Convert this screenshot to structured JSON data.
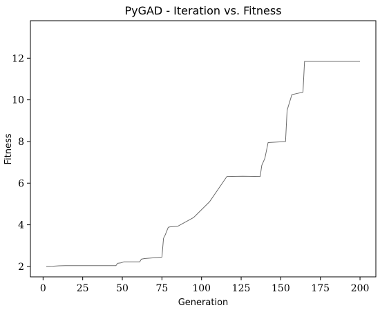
{
  "chart_data": {
    "type": "line",
    "title": "PyGAD - Iteration vs. Fitness",
    "xlabel": "Generation",
    "ylabel": "Fitness",
    "xlim": [
      -8,
      210
    ],
    "ylim": [
      1.5,
      13.8
    ],
    "x_ticks": [
      0,
      25,
      50,
      75,
      100,
      125,
      150,
      175,
      200
    ],
    "y_ticks": [
      2,
      4,
      6,
      8,
      10,
      12
    ],
    "grid": false,
    "legend": "none",
    "series": [
      {
        "color": "#6b6b6b",
        "points": [
          [
            2,
            2.0
          ],
          [
            6,
            2.01
          ],
          [
            10,
            2.03
          ],
          [
            14,
            2.04
          ],
          [
            20,
            2.04
          ],
          [
            30,
            2.04
          ],
          [
            40,
            2.04
          ],
          [
            46,
            2.04
          ],
          [
            47,
            2.15
          ],
          [
            49,
            2.17
          ],
          [
            51,
            2.22
          ],
          [
            61,
            2.22
          ],
          [
            62,
            2.35
          ],
          [
            64,
            2.38
          ],
          [
            75,
            2.45
          ],
          [
            76,
            3.35
          ],
          [
            77,
            3.5
          ],
          [
            79,
            3.88
          ],
          [
            80,
            3.9
          ],
          [
            85,
            3.93
          ],
          [
            95,
            4.35
          ],
          [
            105,
            5.1
          ],
          [
            116,
            6.32
          ],
          [
            126,
            6.33
          ],
          [
            137,
            6.32
          ],
          [
            138,
            6.85
          ],
          [
            140,
            7.2
          ],
          [
            142,
            7.95
          ],
          [
            153,
            8.0
          ],
          [
            154,
            9.5
          ],
          [
            157,
            10.25
          ],
          [
            160,
            10.3
          ],
          [
            164,
            10.37
          ],
          [
            165,
            11.85
          ],
          [
            200,
            11.85
          ]
        ]
      }
    ]
  }
}
